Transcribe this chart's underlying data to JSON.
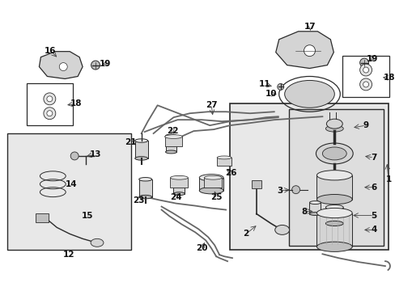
{
  "bg_color": "#ffffff",
  "border_color": "#2a2a2a",
  "line_color": "#444444",
  "label_color": "#111111",
  "comp_fill": "#d4d4d4",
  "comp_fill2": "#c0c0c0",
  "comp_fill3": "#b8b8b8",
  "shaded_fill": "#e8e8e8",
  "white": "#ffffff",
  "label_fs": 7.0
}
